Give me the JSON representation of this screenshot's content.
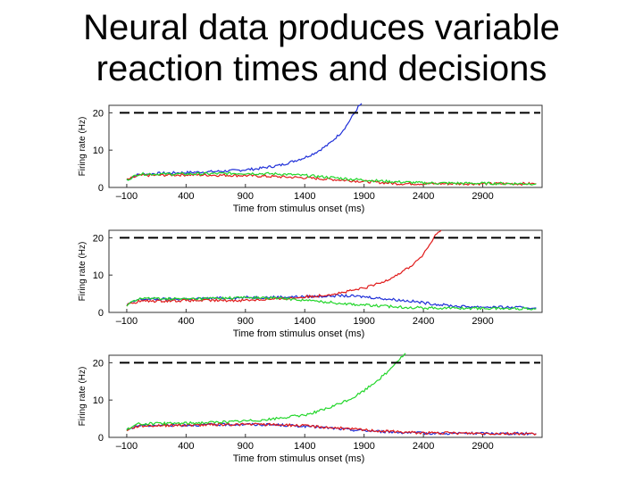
{
  "title": {
    "line1": "Neural data produces variable",
    "line2": "reaction times and decisions"
  },
  "colors": {
    "blue": "#1f2fd8",
    "red": "#e01a1a",
    "green": "#22d62a",
    "threshold": "#000000",
    "axis": "#333333"
  },
  "chart_data": [
    {
      "type": "line",
      "xlabel": "Time from stimulus onset (ms)",
      "ylabel": "Firing rate (Hz)",
      "xlim": [
        -250,
        3400
      ],
      "ylim": [
        0,
        22
      ],
      "xticks": [
        -100,
        400,
        900,
        1400,
        1900,
        2400,
        2900
      ],
      "xtick_labels": [
        "–100",
        "400",
        "900",
        "1400",
        "1900",
        "2400",
        "2900"
      ],
      "yticks": [
        0,
        10,
        20
      ],
      "ytick_labels": [
        "0",
        "10",
        "20"
      ],
      "threshold": 20,
      "grid": false,
      "series": [
        {
          "color_key": "blue",
          "x": [
            -100,
            0,
            200,
            400,
            600,
            800,
            1000,
            1200,
            1400,
            1500,
            1600,
            1700,
            1750,
            1800,
            1850,
            1880
          ],
          "y": [
            2,
            3.5,
            3.8,
            4,
            4.2,
            4.5,
            5,
            6,
            8,
            9.5,
            11.5,
            14.5,
            16.5,
            19,
            21.5,
            22.5
          ]
        },
        {
          "color_key": "red",
          "x": [
            -100,
            0,
            400,
            900,
            1400,
            1700,
            1900,
            2200,
            3350
          ],
          "y": [
            2,
            3.2,
            3.4,
            3.2,
            2.6,
            2,
            1.6,
            1,
            1
          ]
        },
        {
          "color_key": "green",
          "x": [
            -100,
            0,
            400,
            900,
            1200,
            1500,
            1800,
            2100,
            2400,
            3350
          ],
          "y": [
            2,
            3.6,
            3.6,
            3.8,
            3.6,
            3,
            2.2,
            1.6,
            1.2,
            1
          ]
        }
      ]
    },
    {
      "type": "line",
      "xlabel": "Time from stimulus onset (ms)",
      "ylabel": "Firing rate (Hz)",
      "xlim": [
        -250,
        3400
      ],
      "ylim": [
        0,
        22
      ],
      "xticks": [
        -100,
        400,
        900,
        1400,
        1900,
        2400,
        2900
      ],
      "xtick_labels": [
        "–100",
        "400",
        "900",
        "1400",
        "1900",
        "2400",
        "2900"
      ],
      "yticks": [
        0,
        10,
        20
      ],
      "ytick_labels": [
        "0",
        "10",
        "20"
      ],
      "threshold": 20,
      "grid": false,
      "series": [
        {
          "color_key": "blue",
          "x": [
            -100,
            0,
            400,
            900,
            1400,
            1700,
            1900,
            2100,
            2300,
            2500,
            2700,
            3350
          ],
          "y": [
            2,
            3.5,
            3.6,
            4,
            4.2,
            4.5,
            4.2,
            3.6,
            3,
            2.2,
            1.6,
            1.2
          ]
        },
        {
          "color_key": "red",
          "x": [
            -100,
            0,
            400,
            800,
            1200,
            1500,
            1700,
            1900,
            2050,
            2200,
            2300,
            2400,
            2450,
            2500,
            2550
          ],
          "y": [
            2,
            3,
            3.2,
            3.2,
            3.6,
            4.4,
            5.2,
            6.5,
            8,
            10.5,
            12.5,
            15.5,
            18,
            20.5,
            22
          ]
        },
        {
          "color_key": "green",
          "x": [
            -100,
            0,
            400,
            900,
            1200,
            1500,
            1800,
            2100,
            2400,
            3350
          ],
          "y": [
            2,
            3.8,
            3.6,
            4,
            3.8,
            3,
            2.2,
            1.6,
            1.2,
            1
          ]
        }
      ]
    },
    {
      "type": "line",
      "xlabel": "Time from stimulus onset (ms)",
      "ylabel": "Firing rate (Hz)",
      "xlim": [
        -250,
        3400
      ],
      "ylim": [
        0,
        22
      ],
      "xticks": [
        -100,
        400,
        900,
        1400,
        1900,
        2400,
        2900
      ],
      "xtick_labels": [
        "–100",
        "400",
        "900",
        "1400",
        "1900",
        "2400",
        "2900"
      ],
      "yticks": [
        0,
        10,
        20
      ],
      "ytick_labels": [
        "0",
        "10",
        "20"
      ],
      "threshold": 20,
      "grid": false,
      "series": [
        {
          "color_key": "blue",
          "x": [
            -100,
            0,
            400,
            900,
            1200,
            1500,
            1800,
            2100,
            2400,
            3350
          ],
          "y": [
            2,
            3.2,
            3.3,
            3.5,
            3.3,
            2.8,
            2,
            1.5,
            1.1,
            1
          ]
        },
        {
          "color_key": "red",
          "x": [
            -100,
            0,
            400,
            900,
            1200,
            1500,
            1800,
            2100,
            2400,
            3350
          ],
          "y": [
            2,
            3.1,
            3.3,
            3.5,
            3.4,
            2.9,
            2.2,
            1.6,
            1.2,
            1
          ]
        },
        {
          "color_key": "green",
          "x": [
            -100,
            0,
            400,
            800,
            1100,
            1400,
            1600,
            1800,
            1900,
            2000,
            2100,
            2150,
            2200,
            2250
          ],
          "y": [
            2,
            3.6,
            3.8,
            4.2,
            4.8,
            6,
            7.8,
            10.5,
            12.5,
            15,
            17.5,
            19.5,
            21,
            22.5
          ]
        }
      ]
    }
  ]
}
